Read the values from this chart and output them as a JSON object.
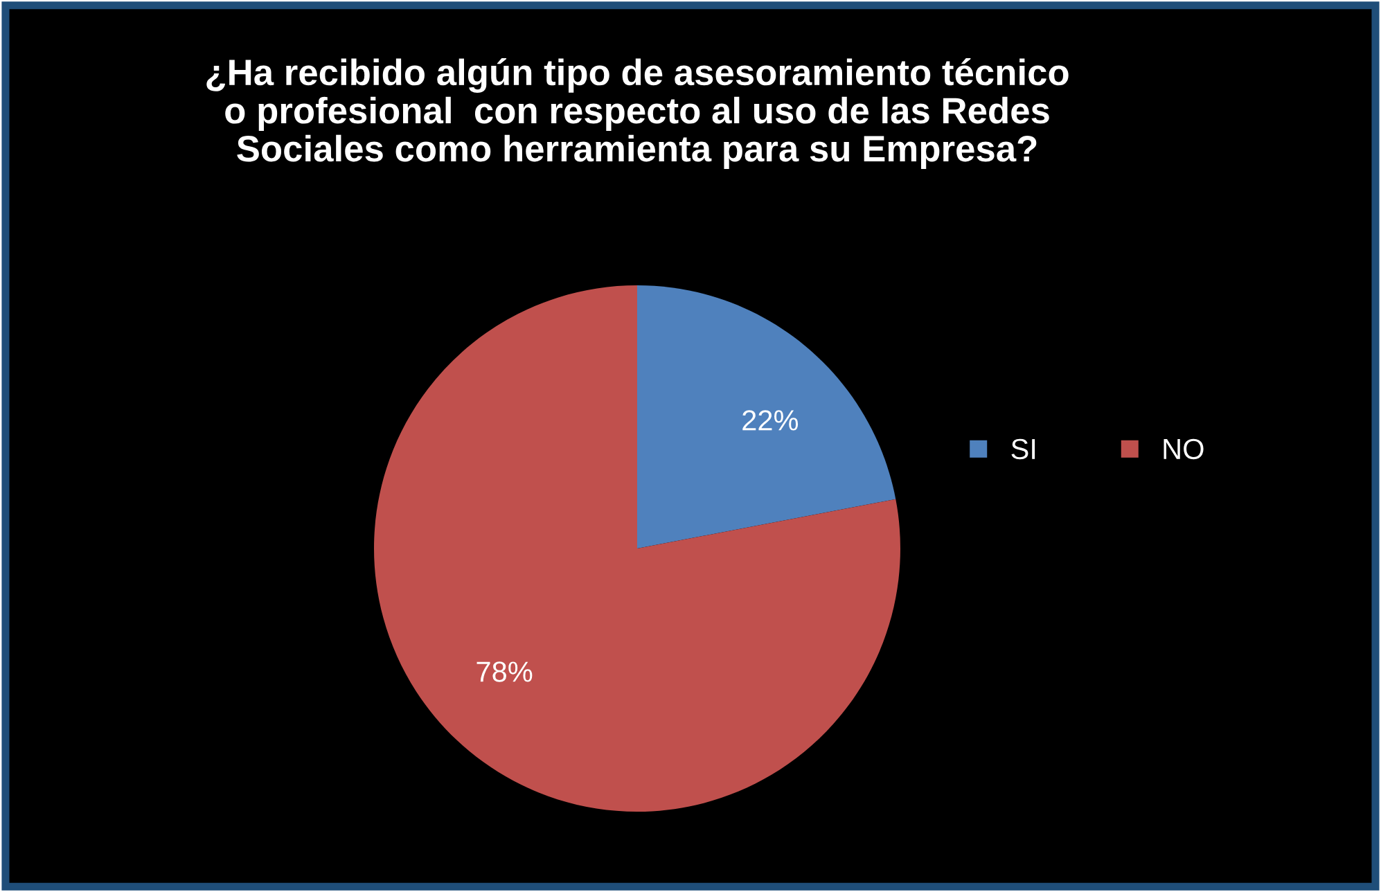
{
  "chart_data": {
    "type": "pie",
    "title": "¿Ha recibido algún tipo de asesoramiento técnico\no profesional  con respecto al uso de las Redes\nSociales como herramienta para su Empresa?",
    "categories": [
      "SI",
      "NO"
    ],
    "values": [
      22,
      78
    ],
    "colors": [
      "#4f81bd",
      "#c0504d"
    ],
    "value_labels": [
      "22%",
      "78%"
    ],
    "legend": "right"
  }
}
